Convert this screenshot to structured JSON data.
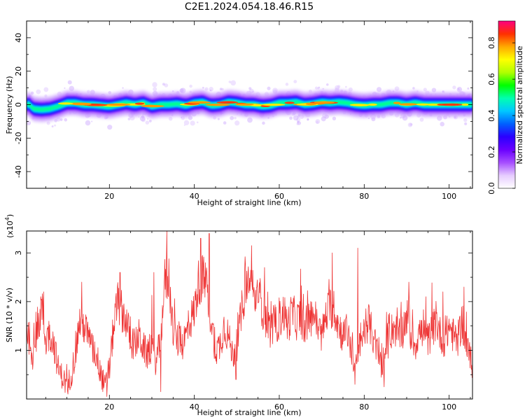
{
  "title": "C2E1.2024.054.18.46.R15",
  "chart_data": [
    {
      "type": "heatmap",
      "xlabel": "Height of straight line (km)",
      "ylabel": "Frequency (Hz)",
      "xlim": [
        0.5,
        105.5
      ],
      "ylim": [
        -50,
        50
      ],
      "xticks": [
        20,
        40,
        60,
        80,
        100
      ],
      "yticks": [
        -40,
        -20,
        0,
        20,
        40
      ],
      "colorbar": {
        "label": "Normalized spectral amplitude",
        "range": [
          0,
          0.92
        ],
        "ticks": [
          0.0,
          0.2,
          0.4,
          0.6,
          0.8
        ],
        "colormap": [
          "#ffffff",
          "#e6ccff",
          "#a64dff",
          "#6a00ff",
          "#2b00ff",
          "#0060ff",
          "#00c8ff",
          "#00ffb0",
          "#00ff00",
          "#b0ff00",
          "#ffff00",
          "#ffaa00",
          "#ff3000",
          "#ff0080"
        ]
      },
      "ridge_frequency_hz": [
        {
          "x": 1,
          "y": 0.5
        },
        {
          "x": 2,
          "y": -2.5
        },
        {
          "x": 4,
          "y": -3
        },
        {
          "x": 6,
          "y": -2.5
        },
        {
          "x": 8,
          "y": -1
        },
        {
          "x": 10,
          "y": 1
        },
        {
          "x": 12,
          "y": 1
        },
        {
          "x": 14,
          "y": 0
        },
        {
          "x": 16,
          "y": 0
        },
        {
          "x": 18,
          "y": -0.5
        },
        {
          "x": 20,
          "y": -1
        },
        {
          "x": 22,
          "y": 0
        },
        {
          "x": 24,
          "y": 1
        },
        {
          "x": 26,
          "y": 0
        },
        {
          "x": 28,
          "y": 1
        },
        {
          "x": 30,
          "y": -1
        },
        {
          "x": 32,
          "y": 0
        },
        {
          "x": 34,
          "y": 0
        },
        {
          "x": 36,
          "y": 0.5
        },
        {
          "x": 38,
          "y": -0.5
        },
        {
          "x": 40,
          "y": 1
        },
        {
          "x": 42,
          "y": 1.5
        },
        {
          "x": 44,
          "y": -0.5
        },
        {
          "x": 46,
          "y": 0
        },
        {
          "x": 48,
          "y": 1.5
        },
        {
          "x": 50,
          "y": 1
        },
        {
          "x": 52,
          "y": 0
        },
        {
          "x": 54,
          "y": 0
        },
        {
          "x": 56,
          "y": -1
        },
        {
          "x": 58,
          "y": -0.5
        },
        {
          "x": 60,
          "y": 1
        },
        {
          "x": 62,
          "y": 1
        },
        {
          "x": 64,
          "y": 1.5
        },
        {
          "x": 66,
          "y": 0
        },
        {
          "x": 68,
          "y": 0.5
        },
        {
          "x": 70,
          "y": 1.5
        },
        {
          "x": 72,
          "y": 1
        },
        {
          "x": 74,
          "y": 1.5
        },
        {
          "x": 76,
          "y": 1
        },
        {
          "x": 78,
          "y": 0
        },
        {
          "x": 80,
          "y": -0.5
        },
        {
          "x": 82,
          "y": 0
        },
        {
          "x": 84,
          "y": 0
        },
        {
          "x": 86,
          "y": 1
        },
        {
          "x": 88,
          "y": 1
        },
        {
          "x": 90,
          "y": 0
        },
        {
          "x": 92,
          "y": 1
        },
        {
          "x": 94,
          "y": 0
        },
        {
          "x": 96,
          "y": 0
        },
        {
          "x": 98,
          "y": 0
        },
        {
          "x": 100,
          "y": 0
        },
        {
          "x": 102,
          "y": 0
        },
        {
          "x": 104,
          "y": 0
        },
        {
          "x": 105.5,
          "y": 0
        }
      ]
    },
    {
      "type": "line",
      "color": "#ee3333",
      "xlabel": "Height of straight line (km)",
      "ylabel": "SNR (10 * v/v)",
      "y_multiplier_label": "(x10",
      "y_multiplier_exponent": "4",
      "xlim": [
        0.5,
        105.5
      ],
      "ylim": [
        0,
        3.45
      ],
      "xticks": [
        20,
        40,
        60,
        80,
        100
      ],
      "yticks": [
        1,
        2,
        3
      ],
      "envelope": [
        {
          "x": 0.5,
          "y": 1.5
        },
        {
          "x": 2,
          "y": 0.9
        },
        {
          "x": 3,
          "y": 1.2
        },
        {
          "x": 4,
          "y": 1.95
        },
        {
          "x": 5,
          "y": 1.2
        },
        {
          "x": 6,
          "y": 1.35
        },
        {
          "x": 7,
          "y": 1.1
        },
        {
          "x": 8,
          "y": 0.6
        },
        {
          "x": 9,
          "y": 0.45
        },
        {
          "x": 10,
          "y": 0.25
        },
        {
          "x": 11,
          "y": 0.5
        },
        {
          "x": 12,
          "y": 0.95
        },
        {
          "x": 13,
          "y": 1.6
        },
        {
          "x": 14,
          "y": 1.5
        },
        {
          "x": 15,
          "y": 1.3
        },
        {
          "x": 16,
          "y": 1.0
        },
        {
          "x": 17,
          "y": 0.9
        },
        {
          "x": 18,
          "y": 0.5
        },
        {
          "x": 19,
          "y": 0.25
        },
        {
          "x": 20,
          "y": 0.6
        },
        {
          "x": 21,
          "y": 1.5
        },
        {
          "x": 22,
          "y": 2.0
        },
        {
          "x": 23,
          "y": 1.8
        },
        {
          "x": 24,
          "y": 1.6
        },
        {
          "x": 25,
          "y": 1.2
        },
        {
          "x": 26,
          "y": 1.1
        },
        {
          "x": 27,
          "y": 1.3
        },
        {
          "x": 28,
          "y": 1.05
        },
        {
          "x": 29,
          "y": 0.9
        },
        {
          "x": 30,
          "y": 1.1
        },
        {
          "x": 31,
          "y": 0.75
        },
        {
          "x": 32,
          "y": 1.2
        },
        {
          "x": 33,
          "y": 2.4
        },
        {
          "x": 34,
          "y": 2.5
        },
        {
          "x": 35,
          "y": 1.4
        },
        {
          "x": 36,
          "y": 1.2
        },
        {
          "x": 37,
          "y": 1.1
        },
        {
          "x": 38,
          "y": 1.3
        },
        {
          "x": 39,
          "y": 1.6
        },
        {
          "x": 40,
          "y": 1.8
        },
        {
          "x": 41,
          "y": 2.4
        },
        {
          "x": 42,
          "y": 2.5
        },
        {
          "x": 43,
          "y": 2.2
        },
        {
          "x": 44,
          "y": 1.6
        },
        {
          "x": 45,
          "y": 1.0
        },
        {
          "x": 46,
          "y": 1.1
        },
        {
          "x": 47,
          "y": 1.5
        },
        {
          "x": 48,
          "y": 1.3
        },
        {
          "x": 49,
          "y": 0.9
        },
        {
          "x": 50,
          "y": 1.1
        },
        {
          "x": 51,
          "y": 1.7
        },
        {
          "x": 52,
          "y": 2.3
        },
        {
          "x": 53,
          "y": 2.4
        },
        {
          "x": 54,
          "y": 2.0
        },
        {
          "x": 55,
          "y": 2.2
        },
        {
          "x": 56,
          "y": 1.9
        },
        {
          "x": 57,
          "y": 1.6
        },
        {
          "x": 58,
          "y": 1.4
        },
        {
          "x": 59,
          "y": 1.5
        },
        {
          "x": 60,
          "y": 1.6
        },
        {
          "x": 61,
          "y": 1.8
        },
        {
          "x": 62,
          "y": 1.5
        },
        {
          "x": 63,
          "y": 1.8
        },
        {
          "x": 64,
          "y": 1.6
        },
        {
          "x": 65,
          "y": 1.7
        },
        {
          "x": 66,
          "y": 1.5
        },
        {
          "x": 67,
          "y": 1.6
        },
        {
          "x": 68,
          "y": 1.8
        },
        {
          "x": 69,
          "y": 1.5
        },
        {
          "x": 70,
          "y": 1.3
        },
        {
          "x": 71,
          "y": 1.7
        },
        {
          "x": 72,
          "y": 1.9
        },
        {
          "x": 73,
          "y": 1.8
        },
        {
          "x": 74,
          "y": 1.5
        },
        {
          "x": 75,
          "y": 1.3
        },
        {
          "x": 76,
          "y": 1.4
        },
        {
          "x": 77,
          "y": 1.0
        },
        {
          "x": 78,
          "y": 0.6
        },
        {
          "x": 79,
          "y": 1.1
        },
        {
          "x": 80,
          "y": 1.4
        },
        {
          "x": 81,
          "y": 1.6
        },
        {
          "x": 82,
          "y": 1.3
        },
        {
          "x": 83,
          "y": 1.0
        },
        {
          "x": 84,
          "y": 0.7
        },
        {
          "x": 85,
          "y": 0.9
        },
        {
          "x": 86,
          "y": 1.3
        },
        {
          "x": 87,
          "y": 1.5
        },
        {
          "x": 88,
          "y": 1.3
        },
        {
          "x": 89,
          "y": 1.4
        },
        {
          "x": 90,
          "y": 1.7
        },
        {
          "x": 91,
          "y": 1.3
        },
        {
          "x": 92,
          "y": 1.1
        },
        {
          "x": 93,
          "y": 1.4
        },
        {
          "x": 94,
          "y": 1.3
        },
        {
          "x": 95,
          "y": 1.2
        },
        {
          "x": 96,
          "y": 1.4
        },
        {
          "x": 97,
          "y": 1.6
        },
        {
          "x": 98,
          "y": 1.3
        },
        {
          "x": 99,
          "y": 1.2
        },
        {
          "x": 100,
          "y": 1.5
        },
        {
          "x": 101,
          "y": 1.3
        },
        {
          "x": 102,
          "y": 1.2
        },
        {
          "x": 103,
          "y": 1.6
        },
        {
          "x": 104,
          "y": 1.1
        },
        {
          "x": 105,
          "y": 0.8
        },
        {
          "x": 105.5,
          "y": 0.7
        }
      ],
      "spikes": [
        {
          "x": 4.5,
          "y": 2.2
        },
        {
          "x": 13.5,
          "y": 2.4
        },
        {
          "x": 22.5,
          "y": 2.6
        },
        {
          "x": 30.5,
          "y": 2.6
        },
        {
          "x": 33.5,
          "y": 3.45
        },
        {
          "x": 41.5,
          "y": 3.3
        },
        {
          "x": 43.5,
          "y": 3.4
        },
        {
          "x": 53.5,
          "y": 3.15
        },
        {
          "x": 56.5,
          "y": 2.7
        },
        {
          "x": 72.5,
          "y": 3.0
        },
        {
          "x": 78.5,
          "y": 3.1
        },
        {
          "x": 90.5,
          "y": 2.4
        },
        {
          "x": 98.5,
          "y": 2.2
        },
        {
          "x": 103.5,
          "y": 2.3
        }
      ],
      "dips": [
        {
          "x": 10.2,
          "y": 0.1
        },
        {
          "x": 19.4,
          "y": 0.05
        },
        {
          "x": 32.1,
          "y": 0.15
        },
        {
          "x": 49.8,
          "y": 0.4
        },
        {
          "x": 77.8,
          "y": 0.3
        },
        {
          "x": 84.7,
          "y": 0.25
        }
      ]
    }
  ]
}
